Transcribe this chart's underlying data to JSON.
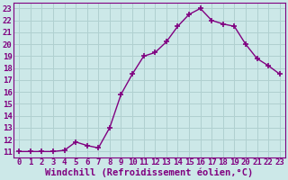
{
  "x": [
    0,
    1,
    2,
    3,
    4,
    5,
    6,
    7,
    8,
    9,
    10,
    11,
    12,
    13,
    14,
    15,
    16,
    17,
    18,
    19,
    20,
    21,
    22,
    23
  ],
  "y": [
    11.0,
    11.0,
    11.0,
    11.0,
    11.1,
    11.8,
    11.5,
    11.3,
    13.0,
    15.8,
    17.5,
    19.0,
    19.3,
    20.2,
    21.5,
    22.5,
    23.0,
    22.0,
    21.7,
    21.5,
    20.0,
    18.8,
    18.2,
    17.5
  ],
  "xlabel": "Windchill (Refroidissement éolien,°C)",
  "ylim": [
    10.5,
    23.5
  ],
  "xlim": [
    -0.5,
    23.5
  ],
  "yticks": [
    11,
    12,
    13,
    14,
    15,
    16,
    17,
    18,
    19,
    20,
    21,
    22,
    23
  ],
  "xticks": [
    0,
    1,
    2,
    3,
    4,
    5,
    6,
    7,
    8,
    9,
    10,
    11,
    12,
    13,
    14,
    15,
    16,
    17,
    18,
    19,
    20,
    21,
    22,
    23
  ],
  "line_color": "#800080",
  "marker": "+",
  "marker_size": 5,
  "marker_lw": 1.2,
  "line_width": 1.0,
  "bg_color": "#cce8e8",
  "grid_color": "#b0d0d0",
  "tick_label_fontsize": 6.5,
  "xlabel_fontsize": 7.5,
  "spine_color": "#800080"
}
